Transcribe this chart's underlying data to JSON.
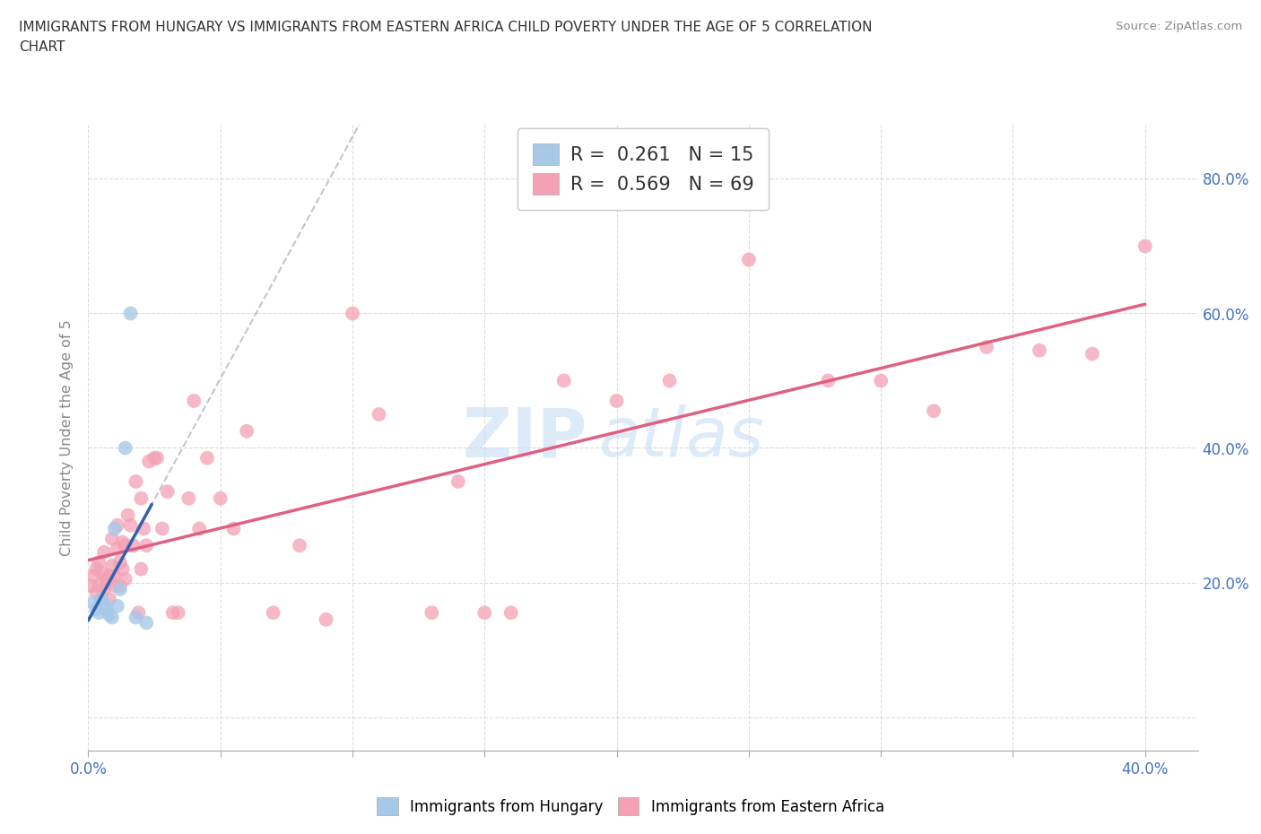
{
  "title_line1": "IMMIGRANTS FROM HUNGARY VS IMMIGRANTS FROM EASTERN AFRICA CHILD POVERTY UNDER THE AGE OF 5 CORRELATION",
  "title_line2": "CHART",
  "source_text": "Source: ZipAtlas.com",
  "ylabel": "Child Poverty Under the Age of 5",
  "watermark_zip": "ZIP",
  "watermark_atlas": "atlas",
  "xlim": [
    0.0,
    0.42
  ],
  "ylim": [
    -0.05,
    0.88
  ],
  "xtick_positions": [
    0.0,
    0.05,
    0.1,
    0.15,
    0.2,
    0.25,
    0.3,
    0.35,
    0.4
  ],
  "ytick_positions": [
    0.0,
    0.2,
    0.4,
    0.6,
    0.8
  ],
  "yticklabels_right": [
    "",
    "20.0%",
    "40.0%",
    "60.0%",
    "80.0%"
  ],
  "color_hungary": "#a8c8e8",
  "color_eastern_africa": "#f4a0b5",
  "trend_hungary_color": "#3060b0",
  "trend_eastern_africa_color": "#e06080",
  "gray_dashed_color": "#b0b8c8",
  "r_hungary": "0.261",
  "n_hungary": "15",
  "r_eastern_africa": "0.569",
  "n_eastern_africa": "69",
  "hungary_x": [
    0.002,
    0.003,
    0.004,
    0.005,
    0.006,
    0.007,
    0.008,
    0.009,
    0.01,
    0.011,
    0.012,
    0.014,
    0.016,
    0.018,
    0.022
  ],
  "hungary_y": [
    0.17,
    0.16,
    0.155,
    0.175,
    0.168,
    0.158,
    0.152,
    0.148,
    0.28,
    0.165,
    0.19,
    0.4,
    0.6,
    0.148,
    0.14
  ],
  "eastern_africa_x": [
    0.001,
    0.002,
    0.003,
    0.003,
    0.004,
    0.004,
    0.005,
    0.005,
    0.006,
    0.006,
    0.007,
    0.007,
    0.008,
    0.008,
    0.009,
    0.009,
    0.01,
    0.01,
    0.011,
    0.011,
    0.012,
    0.012,
    0.013,
    0.013,
    0.014,
    0.014,
    0.015,
    0.016,
    0.017,
    0.018,
    0.019,
    0.02,
    0.02,
    0.021,
    0.022,
    0.023,
    0.025,
    0.026,
    0.028,
    0.03,
    0.032,
    0.034,
    0.038,
    0.04,
    0.042,
    0.045,
    0.05,
    0.055,
    0.06,
    0.07,
    0.08,
    0.09,
    0.1,
    0.11,
    0.13,
    0.14,
    0.15,
    0.16,
    0.18,
    0.2,
    0.22,
    0.25,
    0.28,
    0.3,
    0.32,
    0.34,
    0.36,
    0.38,
    0.4
  ],
  "eastern_africa_y": [
    0.195,
    0.21,
    0.185,
    0.22,
    0.195,
    0.23,
    0.175,
    0.215,
    0.19,
    0.245,
    0.205,
    0.2,
    0.21,
    0.175,
    0.225,
    0.265,
    0.195,
    0.21,
    0.25,
    0.285,
    0.195,
    0.23,
    0.26,
    0.22,
    0.255,
    0.205,
    0.3,
    0.285,
    0.255,
    0.35,
    0.155,
    0.22,
    0.325,
    0.28,
    0.255,
    0.38,
    0.385,
    0.385,
    0.28,
    0.335,
    0.155,
    0.155,
    0.325,
    0.47,
    0.28,
    0.385,
    0.325,
    0.28,
    0.425,
    0.155,
    0.255,
    0.145,
    0.6,
    0.45,
    0.155,
    0.35,
    0.155,
    0.155,
    0.5,
    0.47,
    0.5,
    0.68,
    0.5,
    0.5,
    0.455,
    0.55,
    0.545,
    0.54,
    0.7
  ]
}
